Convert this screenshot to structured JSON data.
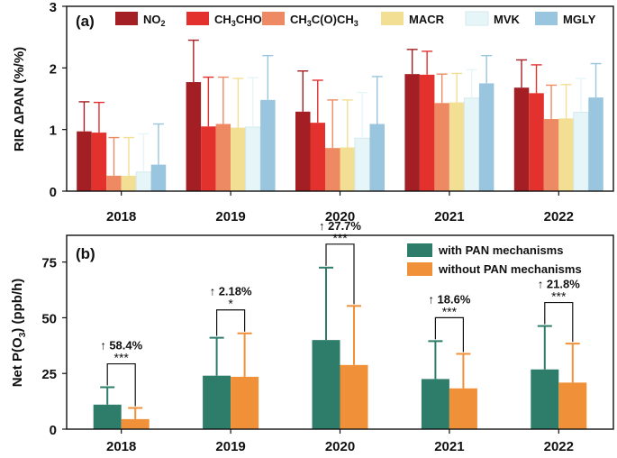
{
  "chart_data": [
    {
      "panel": "(a)",
      "type": "bar",
      "ylabel": "RIR ΔPAN (%/%)",
      "ylim": [
        0,
        3
      ],
      "yticks": [
        "0",
        "1",
        "2",
        "3"
      ],
      "categories": [
        "2018",
        "2019",
        "2020",
        "2021",
        "2022"
      ],
      "legend_position": "top",
      "series": [
        {
          "name": "NO2",
          "name_main": "NO",
          "name_sub": "2",
          "name_tail": "",
          "color": "#a31f23",
          "values": [
            0.97,
            1.77,
            1.29,
            1.9,
            1.68
          ],
          "errors": [
            0.48,
            0.68,
            0.66,
            0.4,
            0.45
          ]
        },
        {
          "name": "CH3CHO",
          "name_main": "CH",
          "name_sub": "3",
          "name_tail": "CHO",
          "color": "#e3312e",
          "values": [
            0.95,
            1.05,
            1.11,
            1.89,
            1.59
          ],
          "errors": [
            0.49,
            0.8,
            0.69,
            0.38,
            0.46
          ]
        },
        {
          "name": "CH3C(O)CH3",
          "name_main": "CH",
          "name_sub": "3",
          "name_tail": "C(O)CH",
          "name_sub2": "3",
          "color": "#ee8a63",
          "values": [
            0.25,
            1.09,
            0.7,
            1.43,
            1.17
          ],
          "errors": [
            0.62,
            0.76,
            0.78,
            0.47,
            0.55
          ]
        },
        {
          "name": "MACR",
          "name_main": "MACR",
          "name_sub": "",
          "name_tail": "",
          "color": "#f2df93",
          "values": [
            0.25,
            1.03,
            0.71,
            1.44,
            1.18
          ],
          "errors": [
            0.62,
            0.8,
            0.77,
            0.47,
            0.55
          ]
        },
        {
          "name": "MVK",
          "name_main": "MVK",
          "name_sub": "",
          "name_tail": "",
          "color": "#e6f5f7",
          "values": [
            0.31,
            1.04,
            0.86,
            1.51,
            1.28
          ],
          "errors": [
            0.62,
            0.8,
            0.74,
            0.46,
            0.55
          ]
        },
        {
          "name": "MGLY",
          "name_main": "MGLY",
          "name_sub": "",
          "name_tail": "",
          "color": "#99c6de",
          "values": [
            0.43,
            1.48,
            1.09,
            1.75,
            1.52
          ],
          "errors": [
            0.66,
            0.72,
            0.77,
            0.45,
            0.55
          ]
        }
      ]
    },
    {
      "panel": "(b)",
      "type": "bar",
      "ylabel": "Net P(O3) (ppb/h)",
      "ylim": [
        0,
        87
      ],
      "yticks": [
        "0",
        "25",
        "50",
        "75"
      ],
      "categories": [
        "2018",
        "2019",
        "2020",
        "2021",
        "2022"
      ],
      "legend_position": "top-right",
      "series": [
        {
          "name": "with PAN mechanisms",
          "color": "#2e7d6a",
          "values": [
            11.0,
            24.0,
            40.0,
            22.5,
            26.8
          ],
          "errors": [
            7.8,
            17.0,
            32.5,
            17.0,
            19.5
          ]
        },
        {
          "name": "without PAN mechanisms",
          "color": "#f0913a",
          "values": [
            4.5,
            23.5,
            28.8,
            18.3,
            20.9
          ],
          "errors": [
            5.0,
            19.5,
            26.5,
            15.5,
            17.5
          ]
        }
      ],
      "annotations": [
        {
          "increase": "↑ 58.4%",
          "significance": "***"
        },
        {
          "increase": "↑ 2.18%",
          "significance": "*"
        },
        {
          "increase": "↑ 27.7%",
          "significance": "***"
        },
        {
          "increase": "↑ 18.6%",
          "significance": "***"
        },
        {
          "increase": "↑ 21.8%",
          "significance": "***"
        }
      ]
    }
  ]
}
